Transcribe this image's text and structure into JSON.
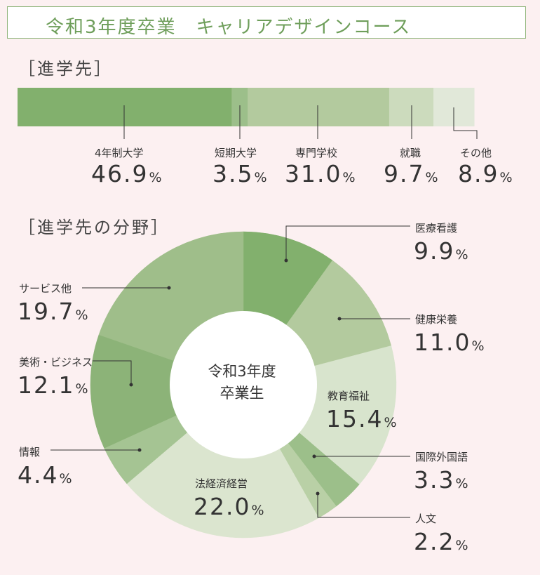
{
  "title": "令和3年度卒業　キャリアデザインコース",
  "section1": "［進学先］",
  "section2": "［進学先の分野］",
  "center_label": {
    "line1": "令和3年度",
    "line2": "卒業生"
  },
  "unit": "%",
  "colors": {
    "title": "#6e9e5a",
    "bar": [
      "#82b06d",
      "#9cbf8a",
      "#b3ca9e",
      "#ccdbbd",
      "#e1e8d9"
    ],
    "donut": [
      "#82b06d",
      "#b3ca9e",
      "#d8e4cd",
      "#9cbf8a",
      "#b9d0a6",
      "#dbe5cf",
      "#a5c493",
      "#8cb378",
      "#9fbe8a"
    ]
  },
  "chart_data": [
    {
      "type": "bar",
      "stacked": true,
      "orientation": "horizontal",
      "title": "［進学先］",
      "categories": [
        "4年制大学",
        "短期大学",
        "専門学校",
        "就職",
        "その他"
      ],
      "values": [
        46.9,
        3.5,
        31.0,
        9.7,
        8.9
      ],
      "labels": [
        "46.9",
        "3.5",
        "31.0",
        "9.7",
        "8.9"
      ]
    },
    {
      "type": "pie",
      "donut": true,
      "title": "［進学先の分野］",
      "categories": [
        "医療看護",
        "健康栄養",
        "教育福祉",
        "国際外国語",
        "人文",
        "法経済経営",
        "情報",
        "美術・ビジネス",
        "サービス他"
      ],
      "values": [
        9.9,
        11.0,
        15.4,
        3.3,
        2.2,
        22.0,
        4.4,
        12.1,
        19.7
      ],
      "labels": [
        "9.9",
        "11.0",
        "15.4",
        "3.3",
        "2.2",
        "22.0",
        "4.4",
        "12.1",
        "19.7"
      ]
    }
  ]
}
